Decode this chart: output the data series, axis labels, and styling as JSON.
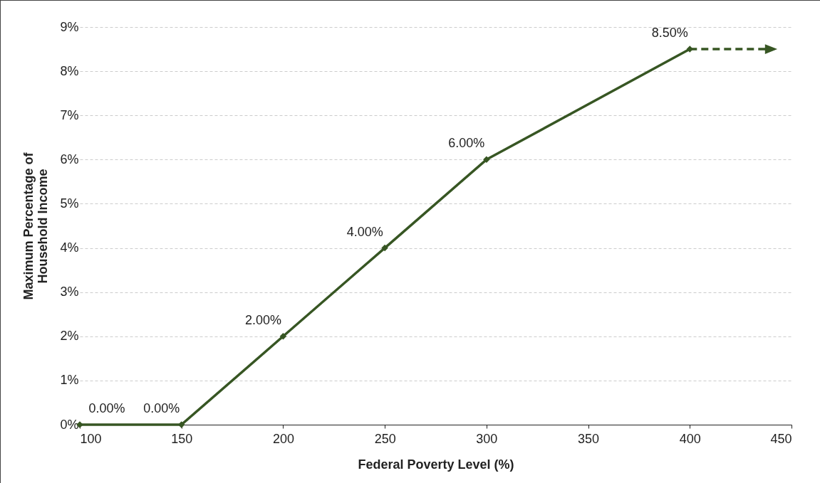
{
  "chart_data": {
    "type": "line",
    "xlabel": "Federal Poverty Level (%)",
    "ylabel": "Maximum Percentage of Household Income",
    "xlim": [
      100,
      450
    ],
    "xticks": [
      100,
      150,
      200,
      250,
      300,
      350,
      400,
      450
    ],
    "ylim": [
      0,
      9
    ],
    "yticks": [
      {
        "value": 0,
        "label": "0%"
      },
      {
        "value": 1,
        "label": "1%"
      },
      {
        "value": 2,
        "label": "2%"
      },
      {
        "value": 3,
        "label": "3%"
      },
      {
        "value": 4,
        "label": "4%"
      },
      {
        "value": 5,
        "label": "5%"
      },
      {
        "value": 6,
        "label": "6%"
      },
      {
        "value": 7,
        "label": "7%"
      },
      {
        "value": 8,
        "label": "8%"
      },
      {
        "value": 9,
        "label": "9%"
      }
    ],
    "grid": "y",
    "series": [
      {
        "color": "#375623",
        "x": [
          100,
          150,
          200,
          250,
          300,
          400
        ],
        "values": [
          0,
          0,
          2,
          4,
          6,
          8.5
        ],
        "value_labels": [
          "0.00%",
          "0.00%",
          "2.00%",
          "4.00%",
          "6.00%",
          "8.50%"
        ],
        "marker": "diamond",
        "line_style": "solid"
      },
      {
        "color": "#375623",
        "x": [
          400,
          440
        ],
        "values": [
          8.5,
          8.5
        ],
        "line_style": "dashed"
      }
    ]
  }
}
